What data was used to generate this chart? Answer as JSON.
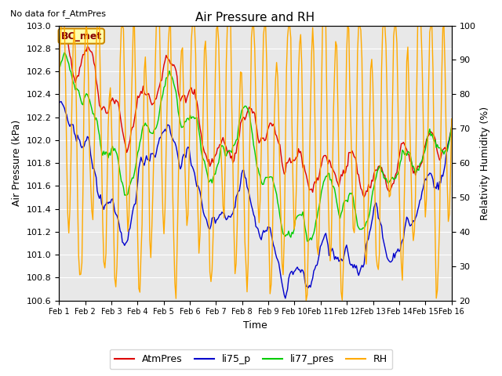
{
  "title": "Air Pressure and RH",
  "subtitle": "No data for f_AtmPres",
  "xlabel": "Time",
  "ylabel_left": "Air Pressure (kPa)",
  "ylabel_right": "Relativity Humidity (%)",
  "ylim_left": [
    100.6,
    103.0
  ],
  "ylim_right": [
    20,
    100
  ],
  "xtick_labels": [
    "Feb 1",
    "Feb 2",
    "Feb 3",
    "Feb 4",
    "Feb 5",
    "Feb 6",
    "Feb 7",
    "Feb 8",
    "Feb 9",
    "Feb 10",
    "Feb 11",
    "Feb 12",
    "Feb 13",
    "Feb 14",
    "Feb 15",
    "Feb 16"
  ],
  "legend_labels": [
    "AtmPres",
    "li75_p",
    "li77_pres",
    "RH"
  ],
  "line_colors": [
    "#dd0000",
    "#0000cc",
    "#00cc00",
    "#ffaa00"
  ],
  "annotation_text": "BC_met",
  "annotation_bg": "#ffffaa",
  "annotation_border": "#cc8800",
  "annotation_text_color": "#880000",
  "background_color": "#e8e8e8",
  "grid_color": "#ffffff",
  "fig_bg": "#ffffff",
  "title_fontsize": 11,
  "label_fontsize": 9,
  "tick_fontsize": 8,
  "xtick_fontsize": 7,
  "legend_fontsize": 9,
  "subtitle_fontsize": 8,
  "annotation_fontsize": 9,
  "linewidth": 1.0
}
